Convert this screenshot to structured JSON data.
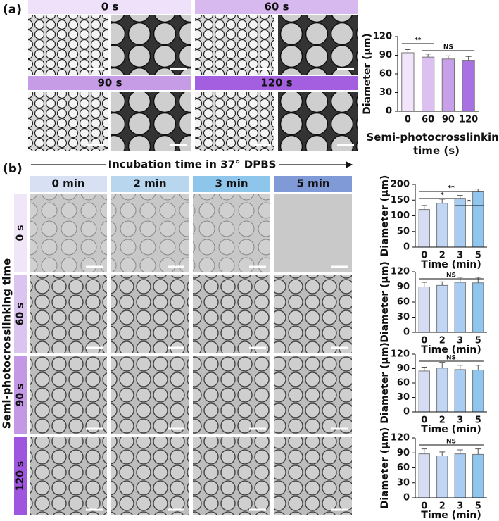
{
  "panel_a": {
    "label": "(a)",
    "headers": [
      "0 s",
      "60 s",
      "90 s",
      "120 s"
    ]
  },
  "panel_b": {
    "label": "(b)",
    "arrow_title": "Incubation time in 37° DPBS",
    "columns": [
      "0 min",
      "2 min",
      "3 min",
      "5 min"
    ],
    "rows": [
      "0 s",
      "60 s",
      "90 s",
      "120 s"
    ],
    "row_axis_title": "Semi-photocrosslinking time"
  },
  "chart_data": [
    {
      "type": "bar",
      "categories": [
        "0",
        "60",
        "90",
        "120"
      ],
      "values": [
        94,
        87,
        84,
        82
      ],
      "errors": [
        5,
        5,
        5,
        6
      ],
      "colors": [
        "#f2e4fb",
        "#dcc0f1",
        "#c8a0e9",
        "#a872e2"
      ],
      "ylim": [
        0,
        120
      ],
      "yticks": [
        0,
        30,
        60,
        90,
        120
      ],
      "ylabel": "Diameter (µm)",
      "xlabel": "Semi-photocrosslinking time (s)",
      "annotations": [
        {
          "text": "**",
          "categories": [
            "0",
            "60"
          ]
        },
        {
          "text": "NS",
          "categories": [
            "60",
            "120"
          ]
        }
      ]
    },
    {
      "type": "bar",
      "categories": [
        "0",
        "2",
        "3",
        "5"
      ],
      "values": [
        120,
        140,
        155,
        178
      ],
      "errors": [
        13,
        13,
        10,
        7
      ],
      "colors": [
        "#d6dcf3",
        "#c1d6f4",
        "#a9cdf2",
        "#8fc6ef"
      ],
      "ylim": [
        0,
        200
      ],
      "yticks": [
        0,
        50,
        100,
        150,
        200
      ],
      "ylabel": "Diameter (µm)",
      "xlabel": "Time (min)",
      "annotations": [
        {
          "text": "**",
          "categories": [
            "0",
            "5"
          ]
        },
        {
          "text": "*",
          "categories": [
            "0",
            "3"
          ]
        },
        {
          "text": "*",
          "categories": [
            "3",
            "5"
          ]
        }
      ]
    },
    {
      "type": "bar",
      "categories": [
        "0",
        "2",
        "3",
        "5"
      ],
      "values": [
        90,
        93,
        99,
        98
      ],
      "errors": [
        9,
        7,
        10,
        11
      ],
      "colors": [
        "#d6dcf3",
        "#c1d6f4",
        "#a9cdf2",
        "#8fc6ef"
      ],
      "ylim": [
        0,
        120
      ],
      "yticks": [
        0,
        30,
        60,
        90,
        120
      ],
      "ylabel": "Diameter (µm)",
      "xlabel": "Time (min)",
      "annotations": [
        {
          "text": "NS",
          "categories": [
            "0",
            "5"
          ]
        }
      ]
    },
    {
      "type": "bar",
      "categories": [
        "0",
        "2",
        "3",
        "5"
      ],
      "values": [
        85,
        91,
        88,
        87
      ],
      "errors": [
        8,
        12,
        9,
        10
      ],
      "colors": [
        "#d6dcf3",
        "#c1d6f4",
        "#a9cdf2",
        "#8fc6ef"
      ],
      "ylim": [
        0,
        120
      ],
      "yticks": [
        0,
        30,
        60,
        90,
        120
      ],
      "ylabel": "Diameter (µm)",
      "xlabel": "Time (min)",
      "annotations": [
        {
          "text": "NS",
          "categories": [
            "0",
            "5"
          ]
        }
      ]
    },
    {
      "type": "bar",
      "categories": [
        "0",
        "2",
        "3",
        "5"
      ],
      "values": [
        88,
        84,
        88,
        87
      ],
      "errors": [
        10,
        8,
        8,
        11
      ],
      "colors": [
        "#d6dcf3",
        "#c1d6f4",
        "#a9cdf2",
        "#8fc6ef"
      ],
      "ylim": [
        0,
        120
      ],
      "yticks": [
        0,
        30,
        60,
        90,
        120
      ],
      "ylabel": "Diameter (µm)",
      "xlabel": "Time (min)",
      "annotations": [
        {
          "text": "NS",
          "categories": [
            "0",
            "5"
          ]
        }
      ]
    }
  ]
}
